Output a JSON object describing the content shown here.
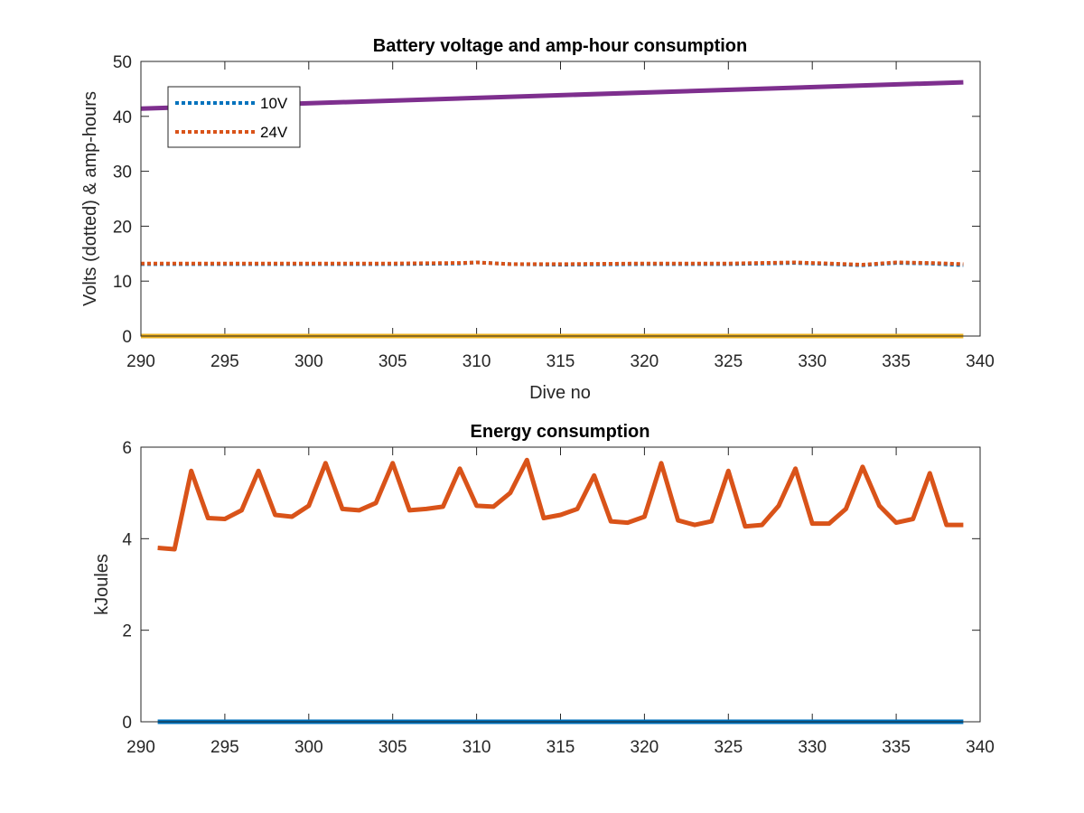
{
  "chart_data": [
    {
      "type": "line",
      "title": "Battery voltage and amp-hour consumption",
      "xlabel": "Dive no",
      "ylabel": "Volts (dotted) & amp-hours",
      "xlim": [
        290,
        340
      ],
      "ylim": [
        0,
        50
      ],
      "xticks": [
        290,
        295,
        300,
        305,
        310,
        315,
        320,
        325,
        330,
        335,
        340
      ],
      "yticks": [
        0,
        10,
        20,
        30,
        40,
        50
      ],
      "grid": false,
      "legend_position": "top-left",
      "series": [
        {
          "name": "10V",
          "style": "dotted",
          "color": "#0072BD",
          "x": [
            290,
            295,
            300,
            305,
            309,
            310,
            312,
            315,
            320,
            325,
            329,
            330,
            333,
            335,
            337,
            339
          ],
          "y": [
            13.1,
            13.1,
            13.1,
            13.1,
            13.2,
            13.4,
            13.1,
            13.0,
            13.1,
            13.1,
            13.3,
            13.2,
            12.9,
            13.3,
            13.2,
            12.9
          ]
        },
        {
          "name": "24V",
          "style": "dotted",
          "color": "#D95319",
          "x": [
            290,
            295,
            300,
            305,
            309,
            310,
            312,
            315,
            320,
            325,
            329,
            330,
            333,
            335,
            337,
            339
          ],
          "y": [
            13.2,
            13.2,
            13.2,
            13.2,
            13.3,
            13.4,
            13.1,
            13.1,
            13.2,
            13.2,
            13.4,
            13.3,
            13.0,
            13.4,
            13.3,
            13.1
          ]
        },
        {
          "style": "solid",
          "color": "#7E2F8E",
          "x": [
            290,
            339
          ],
          "y": [
            41.4,
            46.2
          ]
        },
        {
          "style": "solid",
          "color": "#EDB120",
          "x": [
            290,
            339
          ],
          "y": [
            0,
            0
          ]
        }
      ]
    },
    {
      "type": "line",
      "title": "Energy consumption",
      "xlabel": "",
      "ylabel": "kJoules",
      "xlim": [
        290,
        340
      ],
      "ylim": [
        0,
        6
      ],
      "xticks": [
        290,
        295,
        300,
        305,
        310,
        315,
        320,
        325,
        330,
        335,
        340
      ],
      "yticks": [
        0,
        2,
        4,
        6
      ],
      "grid": false,
      "series": [
        {
          "style": "solid",
          "color": "#D95319",
          "x": [
            291,
            292,
            293,
            294,
            295,
            296,
            297,
            298,
            299,
            300,
            301,
            302,
            303,
            304,
            305,
            306,
            307,
            308,
            309,
            310,
            311,
            312,
            313,
            314,
            315,
            316,
            317,
            318,
            319,
            320,
            321,
            322,
            323,
            324,
            325,
            326,
            327,
            328,
            329,
            330,
            331,
            332,
            333,
            334,
            335,
            336,
            337,
            338,
            339
          ],
          "y": [
            3.8,
            3.77,
            5.48,
            4.45,
            4.43,
            4.62,
            5.48,
            4.52,
            4.48,
            4.72,
            5.65,
            4.65,
            4.62,
            4.78,
            5.65,
            4.62,
            4.65,
            4.7,
            5.53,
            4.72,
            4.7,
            5.0,
            5.72,
            4.45,
            4.52,
            4.65,
            5.38,
            4.38,
            4.35,
            4.48,
            5.65,
            4.4,
            4.3,
            4.38,
            5.48,
            4.27,
            4.3,
            4.72,
            5.53,
            4.33,
            4.33,
            4.65,
            5.57,
            4.72,
            4.35,
            4.43,
            5.43,
            4.3,
            4.3
          ]
        },
        {
          "style": "solid",
          "color": "#0072BD",
          "x": [
            291,
            339
          ],
          "y": [
            0,
            0
          ]
        }
      ]
    }
  ]
}
